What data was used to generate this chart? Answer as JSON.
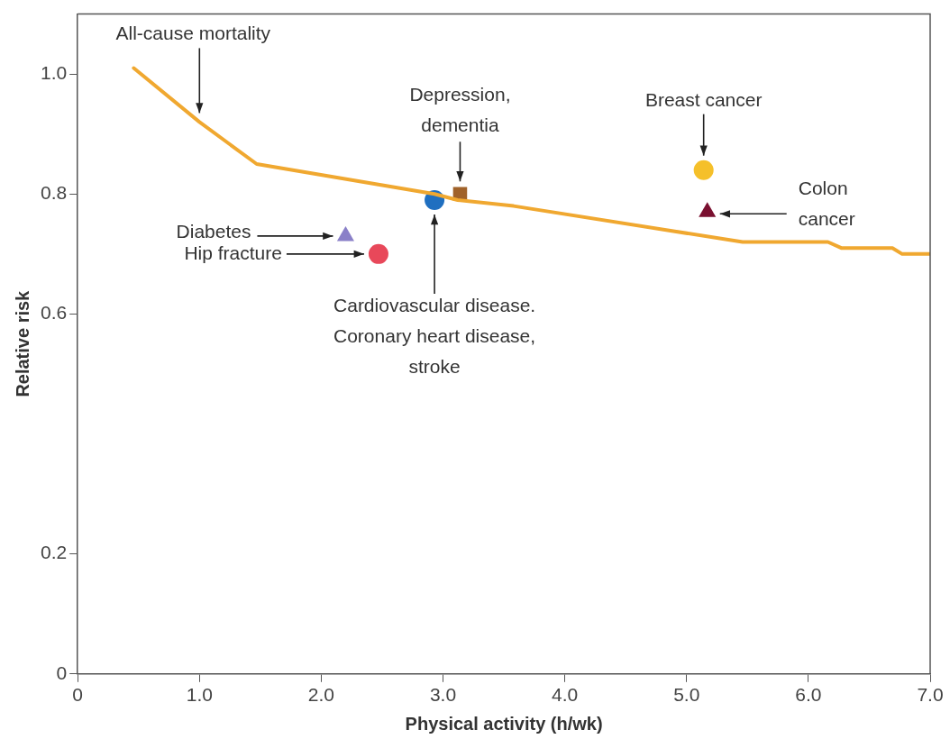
{
  "chart_data": {
    "type": "line",
    "xlabel": "Physical activity (h/wk)",
    "ylabel": "Relative risk",
    "xlim": [
      0,
      7
    ],
    "xticks": [
      0,
      {
        "value": 1,
        "label": "1.0"
      },
      {
        "value": 2,
        "label": "2.0"
      },
      {
        "value": 3,
        "label": "3.0"
      },
      {
        "value": 4,
        "label": "4.0"
      },
      {
        "value": 5,
        "label": "5.0"
      },
      {
        "value": 6,
        "label": "6.0"
      },
      {
        "value": 7,
        "label": "7.0"
      }
    ],
    "ylim": [
      0,
      1.1
    ],
    "yticks": [
      0,
      0.2,
      0.6,
      0.8,
      {
        "value": 1,
        "label": "1.0"
      }
    ],
    "grid": false,
    "legend": false,
    "series": [
      {
        "name": "All-cause mortality",
        "marker": "none",
        "color": "#f0a830",
        "x": [
          0.46,
          1.0,
          1.47,
          2.93,
          3.12,
          3.58,
          5.46,
          5.75,
          6.16,
          6.27,
          6.69,
          6.77,
          7.0
        ],
        "values": [
          1.01,
          0.92,
          0.85,
          0.8,
          0.79,
          0.78,
          0.72,
          0.72,
          0.72,
          0.71,
          0.71,
          0.7,
          0.7
        ]
      },
      {
        "name": "Depression,\ndementia",
        "type": "scatter",
        "marker": "square",
        "color": "#a0622a",
        "x": [
          3.14
        ],
        "values": [
          0.8
        ]
      },
      {
        "name": "Breast cancer",
        "type": "scatter",
        "marker": "circle",
        "color": "#f5c02a",
        "x": [
          5.14
        ],
        "values": [
          0.84
        ]
      },
      {
        "name": "Colon\ncancer",
        "type": "scatter",
        "marker": "triangle",
        "color": "#7a1030",
        "x": [
          5.17
        ],
        "values": [
          0.77
        ]
      },
      {
        "name": "Cardiovascular disease.\nCoronary heart disease,\nstroke",
        "type": "scatter",
        "marker": "circle",
        "color": "#1f6fc0",
        "x": [
          2.93
        ],
        "values": [
          0.79
        ]
      },
      {
        "name": "Diabetes",
        "type": "scatter",
        "marker": "triangle",
        "color": "#8a80c8",
        "x": [
          2.2
        ],
        "values": [
          0.73
        ]
      },
      {
        "name": "Hip fracture",
        "type": "scatter",
        "marker": "circle",
        "color": "#e8485a",
        "x": [
          2.47
        ],
        "values": [
          0.7
        ]
      }
    ]
  }
}
